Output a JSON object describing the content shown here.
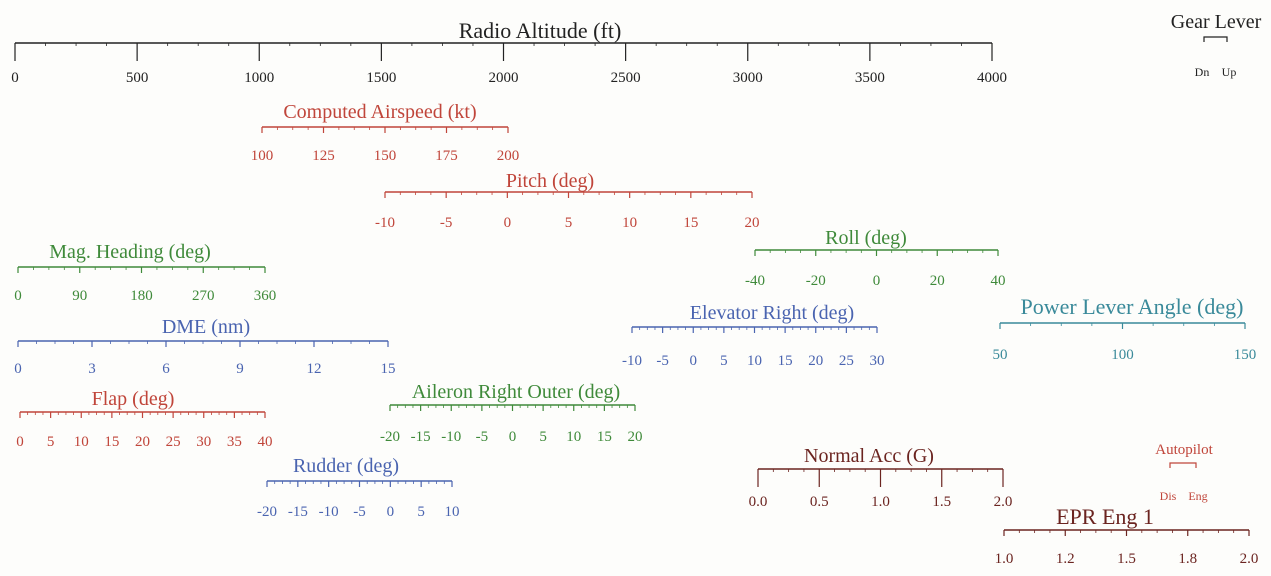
{
  "colors": {
    "black": "#222222",
    "red": "#c0453a",
    "green": "#3f8a3a",
    "blue": "#4a64b0",
    "teal": "#3a8a9a",
    "darkred": "#6b2420"
  },
  "chart_data": [
    {
      "type": "axis-scale",
      "title": "Radio Altitude (ft)",
      "color": "black",
      "ticks": [
        "0",
        "500",
        "1000",
        "1500",
        "2000",
        "2500",
        "3000",
        "3500",
        "4000"
      ],
      "range": [
        0,
        4000
      ]
    },
    {
      "type": "axis-scale",
      "title": "Computed Airspeed (kt)",
      "color": "red",
      "ticks": [
        "100",
        "125",
        "150",
        "175",
        "200"
      ],
      "range": [
        100,
        200
      ]
    },
    {
      "type": "axis-scale",
      "title": "Pitch (deg)",
      "color": "red",
      "ticks": [
        "-10",
        "-5",
        "0",
        "5",
        "10",
        "15",
        "20"
      ],
      "range": [
        -10,
        20
      ]
    },
    {
      "type": "axis-scale",
      "title": "Roll (deg)",
      "color": "green",
      "ticks": [
        "-40",
        "-20",
        "0",
        "20",
        "40"
      ],
      "range": [
        -40,
        40
      ]
    },
    {
      "type": "axis-scale",
      "title": "Mag. Heading (deg)",
      "color": "green",
      "ticks": [
        "0",
        "90",
        "180",
        "270",
        "360"
      ],
      "range": [
        0,
        360
      ]
    },
    {
      "type": "axis-scale",
      "title": "DME (nm)",
      "color": "blue",
      "ticks": [
        "0",
        "3",
        "6",
        "9",
        "12",
        "15"
      ],
      "range": [
        0,
        15
      ]
    },
    {
      "type": "axis-scale",
      "title": "Elevator Right (deg)",
      "color": "blue",
      "ticks": [
        "-10",
        "-5",
        "0",
        "5",
        "10",
        "15",
        "20",
        "25",
        "30"
      ],
      "range": [
        -10,
        30
      ]
    },
    {
      "type": "axis-scale",
      "title": "Power Lever Angle (deg)",
      "color": "teal",
      "ticks": [
        "50",
        "100",
        "150"
      ],
      "range": [
        50,
        150
      ]
    },
    {
      "type": "axis-scale",
      "title": "Flap (deg)",
      "color": "red",
      "ticks": [
        "0",
        "5",
        "10",
        "15",
        "20",
        "25",
        "30",
        "35",
        "40"
      ],
      "range": [
        0,
        40
      ]
    },
    {
      "type": "axis-scale",
      "title": "Aileron Right Outer (deg)",
      "color": "green",
      "ticks": [
        "-20",
        "-15",
        "-10",
        "-5",
        "0",
        "5",
        "10",
        "15",
        "20"
      ],
      "range": [
        -20,
        20
      ]
    },
    {
      "type": "axis-scale",
      "title": "Rudder (deg)",
      "color": "blue",
      "ticks": [
        "-20",
        "-15",
        "-10",
        "-5",
        "0",
        "5",
        "10"
      ],
      "range": [
        -20,
        10
      ]
    },
    {
      "type": "axis-scale",
      "title": "Normal Acc (G)",
      "color": "darkred",
      "ticks": [
        "0.0",
        "0.5",
        "1.0",
        "1.5",
        "2.0"
      ],
      "range": [
        0,
        2
      ]
    },
    {
      "type": "axis-scale",
      "title": "EPR Eng 1",
      "color": "darkred",
      "ticks": [
        "1.0",
        "1.2",
        "1.5",
        "1.8",
        "2.0"
      ],
      "range": [
        1,
        2
      ]
    },
    {
      "type": "discrete-scale",
      "title": "Gear Lever",
      "color": "black",
      "states": [
        "Dn",
        "Up"
      ]
    },
    {
      "type": "discrete-scale",
      "title": "Autopilot",
      "color": "red",
      "states": [
        "Dis",
        "Eng"
      ]
    }
  ]
}
